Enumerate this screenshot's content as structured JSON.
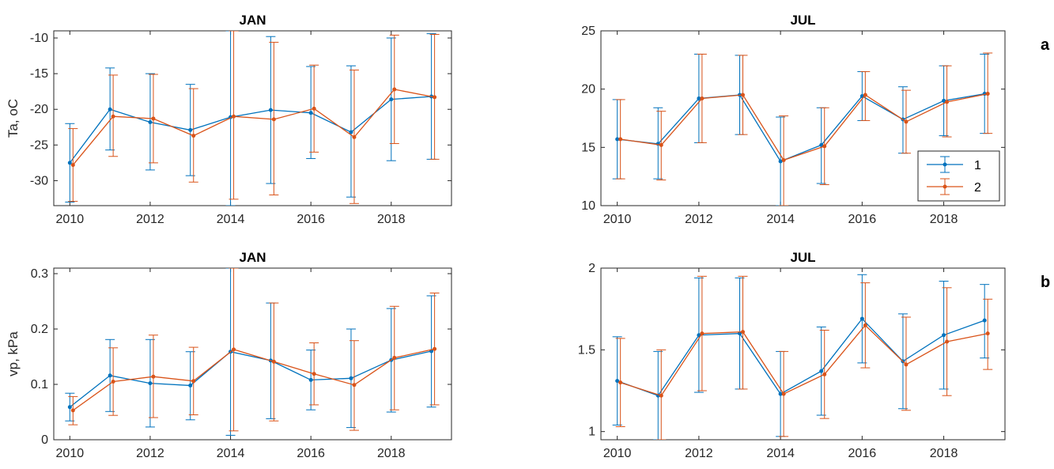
{
  "colors": {
    "series1": "#0072BD",
    "series2": "#D95319",
    "axis": "#262626"
  },
  "legend": {
    "entries": [
      "1",
      "2"
    ],
    "placement": "bottom-right",
    "panel": "top-right"
  },
  "panel_letters": [
    "a",
    "b"
  ],
  "chart_data": [
    {
      "type": "line",
      "title": "JAN",
      "ylabel": "Ta, oC",
      "xlabel": "",
      "xlim": [
        2009.6,
        2019.5
      ],
      "ylim": [
        -33.5,
        -9
      ],
      "xticks": [
        2010,
        2012,
        2014,
        2016,
        2018
      ],
      "yticks": [
        -30,
        -25,
        -20,
        -15,
        -10
      ],
      "x": [
        2010,
        2011,
        2012,
        2013,
        2014,
        2015,
        2016,
        2017,
        2018,
        2019
      ],
      "series": [
        {
          "name": "1",
          "values": [
            -27.5,
            -20.0,
            -21.8,
            -22.9,
            -21.1,
            -20.1,
            -20.5,
            -23.2,
            -18.6,
            -18.2
          ],
          "err_low": [
            -33.0,
            -25.7,
            -28.5,
            -29.3,
            -33.5,
            -30.4,
            -26.9,
            -32.3,
            -27.2,
            -27.0
          ],
          "err_high": [
            -22.0,
            -14.2,
            -15.0,
            -16.5,
            -9.0,
            -9.8,
            -14.0,
            -13.9,
            -10.0,
            -9.4
          ]
        },
        {
          "name": "2",
          "values": [
            -27.8,
            -21.0,
            -21.3,
            -23.7,
            -21.0,
            -21.4,
            -19.9,
            -23.9,
            -17.2,
            -18.3
          ],
          "err_low": [
            -32.9,
            -26.6,
            -27.5,
            -30.2,
            -32.6,
            -32.0,
            -26.0,
            -33.2,
            -24.8,
            -27.0
          ],
          "err_high": [
            -22.7,
            -15.2,
            -15.1,
            -17.1,
            -9.0,
            -10.6,
            -13.8,
            -14.5,
            -9.6,
            -9.5
          ]
        }
      ]
    },
    {
      "type": "line",
      "title": "JUL",
      "ylabel": "",
      "xlabel": "",
      "xlim": [
        2009.6,
        2019.5
      ],
      "ylim": [
        10,
        25
      ],
      "xticks": [
        2010,
        2012,
        2014,
        2016,
        2018
      ],
      "yticks": [
        10,
        15,
        20,
        25
      ],
      "x": [
        2010,
        2011,
        2012,
        2013,
        2014,
        2015,
        2016,
        2017,
        2018,
        2019
      ],
      "series": [
        {
          "name": "1",
          "values": [
            15.7,
            15.3,
            19.2,
            19.5,
            13.8,
            15.2,
            19.4,
            17.4,
            19.0,
            19.6
          ],
          "err_low": [
            12.3,
            12.3,
            15.4,
            16.1,
            10.0,
            11.9,
            17.3,
            14.5,
            16.0,
            16.2
          ],
          "err_high": [
            19.1,
            18.4,
            23.0,
            22.9,
            17.6,
            18.4,
            21.5,
            20.2,
            22.0,
            23.0
          ]
        },
        {
          "name": "2",
          "values": [
            15.7,
            15.2,
            19.2,
            19.5,
            13.9,
            15.1,
            19.5,
            17.2,
            18.9,
            19.6
          ],
          "err_low": [
            12.3,
            12.2,
            15.4,
            16.1,
            10.0,
            11.8,
            17.3,
            14.5,
            15.9,
            16.2
          ],
          "err_high": [
            19.1,
            18.1,
            23.0,
            22.9,
            17.7,
            18.4,
            21.5,
            19.9,
            22.0,
            23.1
          ]
        }
      ]
    },
    {
      "type": "line",
      "title": "JAN",
      "ylabel": "vp, kPa",
      "xlabel": "",
      "xlim": [
        2009.6,
        2019.5
      ],
      "ylim": [
        0,
        0.31
      ],
      "xticks": [
        2010,
        2012,
        2014,
        2016,
        2018
      ],
      "yticks": [
        0,
        0.1,
        0.2,
        0.3
      ],
      "ytick_labels": [
        "0",
        "0.1",
        "0.2",
        "0.3"
      ],
      "x": [
        2010,
        2011,
        2012,
        2013,
        2014,
        2015,
        2016,
        2017,
        2018,
        2019
      ],
      "series": [
        {
          "name": "1",
          "values": [
            0.059,
            0.116,
            0.102,
            0.098,
            0.159,
            0.143,
            0.108,
            0.111,
            0.144,
            0.16
          ],
          "err_low": [
            0.034,
            0.051,
            0.023,
            0.036,
            0.008,
            0.038,
            0.054,
            0.022,
            0.05,
            0.059
          ],
          "err_high": [
            0.084,
            0.181,
            0.181,
            0.159,
            0.31,
            0.247,
            0.162,
            0.2,
            0.237,
            0.26
          ]
        },
        {
          "name": "2",
          "values": [
            0.053,
            0.105,
            0.114,
            0.106,
            0.163,
            0.141,
            0.119,
            0.099,
            0.148,
            0.164
          ],
          "err_low": [
            0.027,
            0.044,
            0.04,
            0.045,
            0.016,
            0.034,
            0.063,
            0.017,
            0.054,
            0.063
          ],
          "err_high": [
            0.078,
            0.166,
            0.189,
            0.167,
            0.31,
            0.247,
            0.175,
            0.179,
            0.241,
            0.265
          ]
        }
      ]
    },
    {
      "type": "line",
      "title": "JUL",
      "ylabel": "",
      "xlabel": "",
      "xlim": [
        2009.6,
        2019.5
      ],
      "ylim": [
        0.95,
        2.0
      ],
      "xticks": [
        2010,
        2012,
        2014,
        2016,
        2018
      ],
      "yticks": [
        1,
        1.5,
        2
      ],
      "ytick_labels": [
        "1",
        "1.5",
        "2"
      ],
      "x": [
        2010,
        2011,
        2012,
        2013,
        2014,
        2015,
        2016,
        2017,
        2018,
        2019
      ],
      "series": [
        {
          "name": "1",
          "values": [
            1.31,
            1.22,
            1.59,
            1.6,
            1.23,
            1.37,
            1.69,
            1.43,
            1.59,
            1.68
          ],
          "err_low": [
            1.04,
            0.95,
            1.24,
            1.26,
            0.97,
            1.1,
            1.42,
            1.14,
            1.26,
            1.45
          ],
          "err_high": [
            1.58,
            1.49,
            1.94,
            1.94,
            1.49,
            1.64,
            1.96,
            1.72,
            1.92,
            1.9
          ]
        },
        {
          "name": "2",
          "values": [
            1.3,
            1.22,
            1.6,
            1.61,
            1.23,
            1.35,
            1.65,
            1.41,
            1.55,
            1.6
          ],
          "err_low": [
            1.03,
            0.95,
            1.25,
            1.26,
            0.97,
            1.08,
            1.39,
            1.13,
            1.22,
            1.38
          ],
          "err_high": [
            1.57,
            1.5,
            1.95,
            1.95,
            1.49,
            1.62,
            1.91,
            1.7,
            1.88,
            1.81
          ]
        }
      ]
    }
  ]
}
